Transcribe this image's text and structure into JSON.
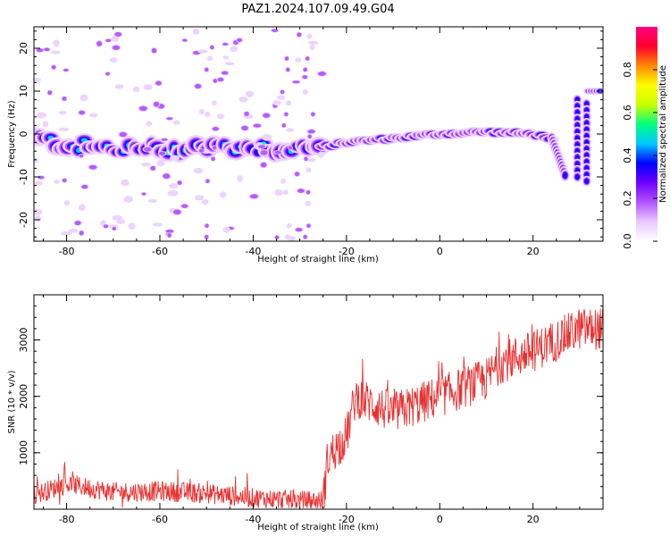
{
  "title": "PAZ1.2024.107.09.49.G04",
  "chart_data": [
    {
      "type": "heatmap",
      "xlabel": "Height of straight line (km)",
      "ylabel": "Frequency (Hz)",
      "xlim": [
        -87,
        35
      ],
      "ylim": [
        -25,
        25
      ],
      "xticks": [
        -80,
        -60,
        -40,
        -20,
        0,
        20
      ],
      "yticks": [
        -20,
        -10,
        0,
        10,
        20
      ],
      "colorbar": {
        "label": "Normalized spectral amplitude",
        "range": [
          0,
          1
        ],
        "ticks": [
          "0.0",
          "0.2",
          "0.4",
          "0.6",
          "0.8"
        ],
        "colors": [
          "#ffffff",
          "#e9c9ff",
          "#b255ff",
          "#7000ff",
          "#0000ff",
          "#00c8ff",
          "#00ff80",
          "#c8ff00",
          "#ffff00",
          "#ff8800",
          "#ff0030",
          "#ff0080"
        ]
      },
      "ridge": [
        {
          "x": -87,
          "y": -1
        },
        {
          "x": -80,
          "y": -2.5
        },
        {
          "x": -70,
          "y": -3.5
        },
        {
          "x": -60,
          "y": -3.5
        },
        {
          "x": -50,
          "y": -3
        },
        {
          "x": -40,
          "y": -3
        },
        {
          "x": -30,
          "y": -3.5
        },
        {
          "x": -25,
          "y": -3
        },
        {
          "x": -20,
          "y": -2
        },
        {
          "x": -10,
          "y": -1
        },
        {
          "x": 0,
          "y": 0
        },
        {
          "x": 10,
          "y": 0.5
        },
        {
          "x": 20,
          "y": 0
        },
        {
          "x": 24,
          "y": -1
        },
        {
          "x": 27,
          "y": -10
        },
        {
          "x": 28,
          "y": 9
        },
        {
          "x": 33,
          "y": 10
        }
      ]
    },
    {
      "type": "line",
      "xlabel": "Height of straight line (km)",
      "ylabel": "SNR (10 * v/v)",
      "xlim": [
        -87,
        35
      ],
      "ylim": [
        0,
        3800
      ],
      "xticks": [
        -80,
        -60,
        -40,
        -20,
        0,
        20
      ],
      "yticks": [
        1000,
        2000,
        3000
      ],
      "color": "#e83030",
      "trend": [
        {
          "x": -87,
          "y": 250
        },
        {
          "x": -80,
          "y": 450
        },
        {
          "x": -70,
          "y": 300
        },
        {
          "x": -60,
          "y": 320
        },
        {
          "x": -50,
          "y": 280
        },
        {
          "x": -40,
          "y": 200
        },
        {
          "x": -30,
          "y": 150
        },
        {
          "x": -25,
          "y": 150
        },
        {
          "x": -24,
          "y": 900
        },
        {
          "x": -20,
          "y": 1300
        },
        {
          "x": -18,
          "y": 2000
        },
        {
          "x": -10,
          "y": 1700
        },
        {
          "x": 0,
          "y": 2000
        },
        {
          "x": 10,
          "y": 2300
        },
        {
          "x": 13,
          "y": 2600
        },
        {
          "x": 20,
          "y": 2800
        },
        {
          "x": 30,
          "y": 3200
        },
        {
          "x": 35,
          "y": 3200
        }
      ]
    }
  ]
}
